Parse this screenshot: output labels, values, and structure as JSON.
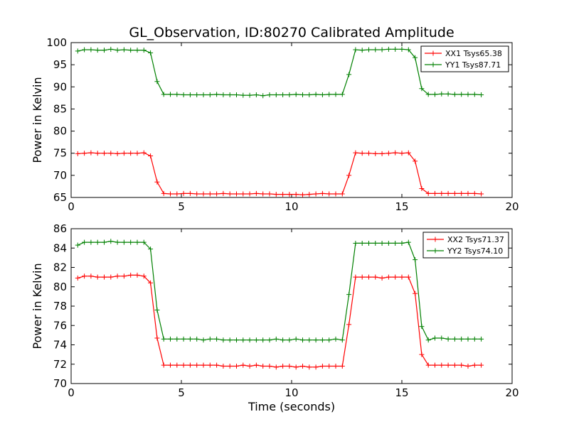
{
  "chart_data": [
    {
      "type": "line",
      "title": "GL_Observation, ID:80270 Calibrated Amplitude",
      "xlabel": "",
      "ylabel": "Power in Kelvin",
      "xlim": [
        0,
        20
      ],
      "ylim": [
        65,
        100
      ],
      "xticks": [
        0,
        5,
        10,
        15,
        20
      ],
      "yticks": [
        65,
        70,
        75,
        80,
        85,
        90,
        95,
        100
      ],
      "grid": false,
      "legend_position": "top-right",
      "x": [
        0.3,
        0.6,
        0.9,
        1.2,
        1.5,
        1.8,
        2.1,
        2.4,
        2.7,
        3.0,
        3.3,
        3.6,
        3.9,
        4.2,
        4.5,
        4.8,
        5.1,
        5.4,
        5.7,
        6.0,
        6.3,
        6.6,
        6.9,
        7.2,
        7.5,
        7.8,
        8.1,
        8.4,
        8.7,
        9.0,
        9.3,
        9.6,
        9.9,
        10.2,
        10.5,
        10.8,
        11.1,
        11.4,
        11.7,
        12.0,
        12.3,
        12.6,
        12.9,
        13.2,
        13.5,
        13.8,
        14.1,
        14.4,
        14.7,
        15.0,
        15.3,
        15.6,
        15.9,
        16.2,
        16.5,
        16.8,
        17.1,
        17.4,
        17.7,
        18.0,
        18.3,
        18.6
      ],
      "series": [
        {
          "name": "XX1 Tsys65.38",
          "color": "#ff0000",
          "values": [
            74.9,
            75.0,
            75.1,
            75.0,
            75.0,
            75.0,
            74.9,
            75.0,
            75.0,
            75.0,
            75.1,
            74.4,
            68.5,
            65.9,
            65.8,
            65.8,
            65.9,
            65.9,
            65.8,
            65.8,
            65.8,
            65.8,
            65.9,
            65.8,
            65.8,
            65.8,
            65.8,
            65.9,
            65.8,
            65.8,
            65.7,
            65.7,
            65.7,
            65.7,
            65.6,
            65.7,
            65.8,
            65.9,
            65.8,
            65.8,
            65.8,
            70.0,
            75.1,
            75.0,
            75.0,
            74.9,
            74.9,
            75.0,
            75.1,
            75.0,
            75.1,
            73.2,
            67.0,
            65.9,
            65.9,
            65.9,
            65.9,
            65.9,
            65.9,
            65.9,
            65.9,
            65.8
          ]
        },
        {
          "name": "YY1 Tsys87.71",
          "color": "#008000",
          "values": [
            98.1,
            98.4,
            98.4,
            98.3,
            98.3,
            98.5,
            98.3,
            98.4,
            98.3,
            98.3,
            98.3,
            97.7,
            91.2,
            88.3,
            88.3,
            88.3,
            88.2,
            88.2,
            88.2,
            88.2,
            88.2,
            88.3,
            88.2,
            88.2,
            88.2,
            88.1,
            88.1,
            88.2,
            88.0,
            88.2,
            88.2,
            88.2,
            88.2,
            88.3,
            88.2,
            88.2,
            88.3,
            88.2,
            88.3,
            88.3,
            88.3,
            92.8,
            98.4,
            98.3,
            98.4,
            98.4,
            98.4,
            98.5,
            98.5,
            98.5,
            98.4,
            96.6,
            89.6,
            88.3,
            88.3,
            88.4,
            88.4,
            88.3,
            88.3,
            88.3,
            88.3,
            88.2
          ]
        }
      ]
    },
    {
      "type": "line",
      "title": "",
      "xlabel": "Time (seconds)",
      "ylabel": "Power in Kelvin",
      "xlim": [
        0,
        20
      ],
      "ylim": [
        70,
        86
      ],
      "xticks": [
        0,
        5,
        10,
        15,
        20
      ],
      "yticks": [
        70,
        72,
        74,
        76,
        78,
        80,
        82,
        84,
        86
      ],
      "grid": false,
      "legend_position": "top-right",
      "x": [
        0.3,
        0.6,
        0.9,
        1.2,
        1.5,
        1.8,
        2.1,
        2.4,
        2.7,
        3.0,
        3.3,
        3.6,
        3.9,
        4.2,
        4.5,
        4.8,
        5.1,
        5.4,
        5.7,
        6.0,
        6.3,
        6.6,
        6.9,
        7.2,
        7.5,
        7.8,
        8.1,
        8.4,
        8.7,
        9.0,
        9.3,
        9.6,
        9.9,
        10.2,
        10.5,
        10.8,
        11.1,
        11.4,
        11.7,
        12.0,
        12.3,
        12.6,
        12.9,
        13.2,
        13.5,
        13.8,
        14.1,
        14.4,
        14.7,
        15.0,
        15.3,
        15.6,
        15.9,
        16.2,
        16.5,
        16.8,
        17.1,
        17.4,
        17.7,
        18.0,
        18.3,
        18.6
      ],
      "series": [
        {
          "name": "XX2 Tsys71.37",
          "color": "#ff0000",
          "values": [
            80.9,
            81.1,
            81.1,
            81.0,
            81.0,
            81.0,
            81.1,
            81.1,
            81.2,
            81.2,
            81.1,
            80.4,
            74.7,
            71.9,
            71.9,
            71.9,
            71.9,
            71.9,
            71.9,
            71.9,
            71.9,
            71.9,
            71.8,
            71.8,
            71.8,
            71.9,
            71.8,
            71.9,
            71.8,
            71.8,
            71.7,
            71.8,
            71.8,
            71.7,
            71.8,
            71.7,
            71.7,
            71.8,
            71.8,
            71.8,
            71.8,
            76.1,
            81.0,
            81.0,
            81.0,
            81.0,
            80.9,
            81.0,
            81.0,
            81.0,
            81.0,
            79.3,
            73.0,
            71.9,
            71.9,
            71.9,
            71.9,
            71.9,
            71.9,
            71.8,
            71.9,
            71.9
          ]
        },
        {
          "name": "YY2 Tsys74.10",
          "color": "#008000",
          "values": [
            84.3,
            84.6,
            84.6,
            84.6,
            84.6,
            84.7,
            84.6,
            84.6,
            84.6,
            84.6,
            84.6,
            83.9,
            77.6,
            74.6,
            74.6,
            74.6,
            74.6,
            74.6,
            74.6,
            74.5,
            74.6,
            74.6,
            74.5,
            74.5,
            74.5,
            74.5,
            74.5,
            74.5,
            74.5,
            74.5,
            74.6,
            74.5,
            74.5,
            74.6,
            74.5,
            74.5,
            74.5,
            74.5,
            74.5,
            74.6,
            74.5,
            79.2,
            84.5,
            84.5,
            84.5,
            84.5,
            84.5,
            84.5,
            84.5,
            84.5,
            84.6,
            82.8,
            75.9,
            74.5,
            74.7,
            74.7,
            74.6,
            74.6,
            74.6,
            74.6,
            74.6,
            74.6
          ]
        }
      ]
    }
  ]
}
